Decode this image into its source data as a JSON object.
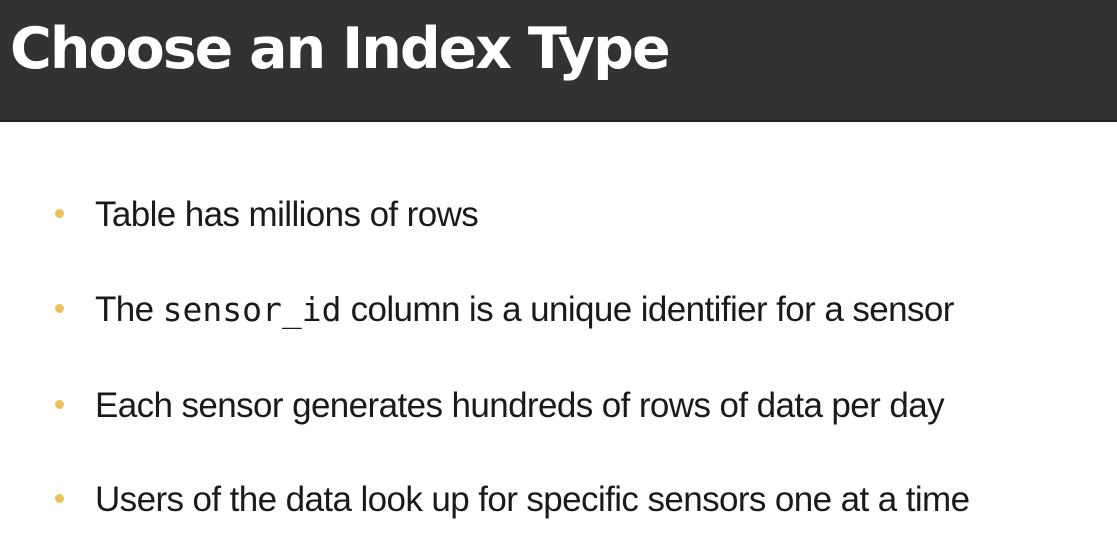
{
  "slide": {
    "title": "Choose an Index Type",
    "bullets": [
      {
        "text": "Table has millions of rows"
      },
      {
        "text_before": "The ",
        "code": "sensor_id",
        "text_after": " column is a unique identifier for a sensor"
      },
      {
        "text": "Each sensor generates hundreds of rows of data per day"
      },
      {
        "text": "Users of the data look up for specific sensors one at a time"
      }
    ]
  },
  "colors": {
    "header_background": "#323232",
    "title_text": "#ffffff",
    "bullet_marker": "#e8c35a",
    "body_text": "#1a1a1a",
    "slide_background": "#ffffff"
  }
}
